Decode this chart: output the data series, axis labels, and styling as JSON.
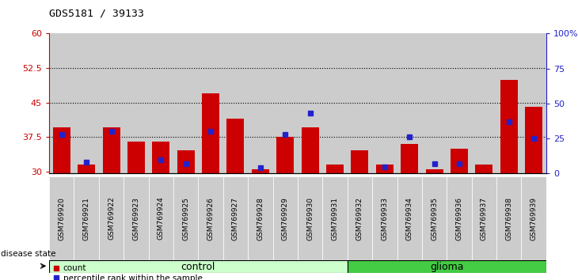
{
  "title": "GDS5181 / 39133",
  "samples": [
    "GSM769920",
    "GSM769921",
    "GSM769922",
    "GSM769923",
    "GSM769924",
    "GSM769925",
    "GSM769926",
    "GSM769927",
    "GSM769928",
    "GSM769929",
    "GSM769930",
    "GSM769931",
    "GSM769932",
    "GSM769933",
    "GSM769934",
    "GSM769935",
    "GSM769936",
    "GSM769937",
    "GSM769938",
    "GSM769939"
  ],
  "red_values": [
    39.5,
    31.5,
    39.5,
    36.5,
    36.5,
    34.5,
    47.0,
    41.5,
    30.5,
    37.5,
    39.5,
    31.5,
    34.5,
    31.5,
    36.0,
    30.5,
    35.0,
    31.5,
    50.0,
    44.0
  ],
  "blue_values": [
    28.0,
    8.0,
    30.0,
    null,
    10.0,
    7.0,
    30.0,
    null,
    4.0,
    28.0,
    43.0,
    null,
    null,
    5.0,
    26.0,
    7.0,
    7.0,
    null,
    37.0,
    25.0
  ],
  "ylim_left": [
    29.5,
    60
  ],
  "ylim_right": [
    0,
    100
  ],
  "yticks_left": [
    30,
    37.5,
    45,
    52.5,
    60
  ],
  "yticks_right": [
    0,
    25,
    50,
    75,
    100
  ],
  "ytick_labels_left": [
    "30",
    "37.5",
    "45",
    "52.5",
    "60"
  ],
  "ytick_labels_right": [
    "0",
    "25",
    "50",
    "75",
    "100%"
  ],
  "control_count": 12,
  "glioma_count": 8,
  "bar_color": "#cc0000",
  "dot_color": "#2222cc",
  "col_bg_color": "#cccccc",
  "control_color_light": "#ccffcc",
  "control_color_dark": "#66ee66",
  "glioma_color": "#44cc44",
  "baseline": 29.5
}
